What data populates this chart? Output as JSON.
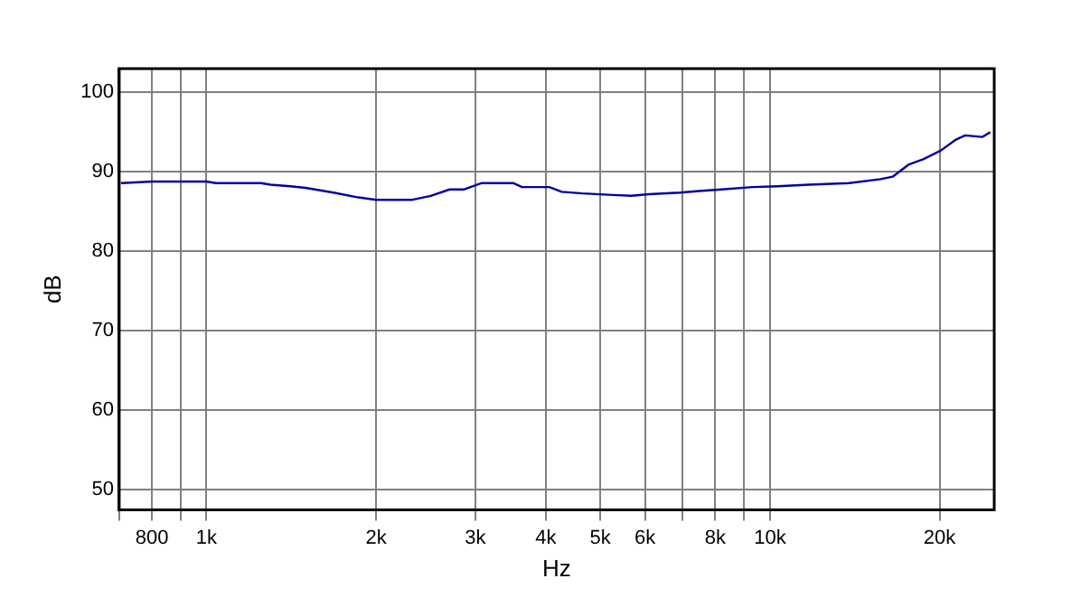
{
  "chart_data": {
    "type": "line",
    "xlabel": "Hz",
    "ylabel": "dB",
    "log": "x",
    "grid": true,
    "legend": false,
    "marker": "none",
    "line_style": "solid",
    "xlim": [
      700,
      25000
    ],
    "xticks": [
      {
        "value": 700,
        "label": null
      },
      {
        "value": 800,
        "label": "800"
      },
      {
        "value": 900,
        "label": null
      },
      {
        "value": 1000,
        "label": "1k"
      },
      {
        "value": 2000,
        "label": "2k"
      },
      {
        "value": 3000,
        "label": "3k"
      },
      {
        "value": 4000,
        "label": "4k"
      },
      {
        "value": 5000,
        "label": "5k"
      },
      {
        "value": 6000,
        "label": "6k"
      },
      {
        "value": 7000,
        "label": null
      },
      {
        "value": 8000,
        "label": "8k"
      },
      {
        "value": 9000,
        "label": null
      },
      {
        "value": 10000,
        "label": "10k"
      },
      {
        "value": 20000,
        "label": "20k"
      }
    ],
    "ylim": [
      47.5,
      103
    ],
    "yticks": [
      50,
      60,
      70,
      80,
      90,
      100
    ],
    "series": [
      {
        "color": "#0000a0",
        "x": [
          705,
          800,
          1000,
          1040,
          1250,
          1300,
          1410,
          1500,
          1680,
          1860,
          2000,
          2320,
          2500,
          2700,
          2860,
          3080,
          3500,
          3630,
          3900,
          4060,
          4270,
          4650,
          5270,
          5670,
          6100,
          6930,
          7470,
          8200,
          9300,
          10300,
          11700,
          13800,
          15700,
          16500,
          17600,
          18700,
          20100,
          21300,
          22200,
          23800,
          24600
        ],
        "values": [
          88.6,
          88.8,
          88.8,
          88.6,
          88.6,
          88.4,
          88.2,
          88.0,
          87.4,
          86.8,
          86.5,
          86.5,
          87.0,
          87.8,
          87.8,
          88.6,
          88.6,
          88.1,
          88.1,
          88.1,
          87.5,
          87.3,
          87.1,
          87.0,
          87.2,
          87.4,
          87.6,
          87.8,
          88.1,
          88.2,
          88.4,
          88.6,
          89.1,
          89.4,
          90.9,
          91.6,
          92.7,
          94.0,
          94.6,
          94.4,
          95.0
        ]
      }
    ]
  }
}
